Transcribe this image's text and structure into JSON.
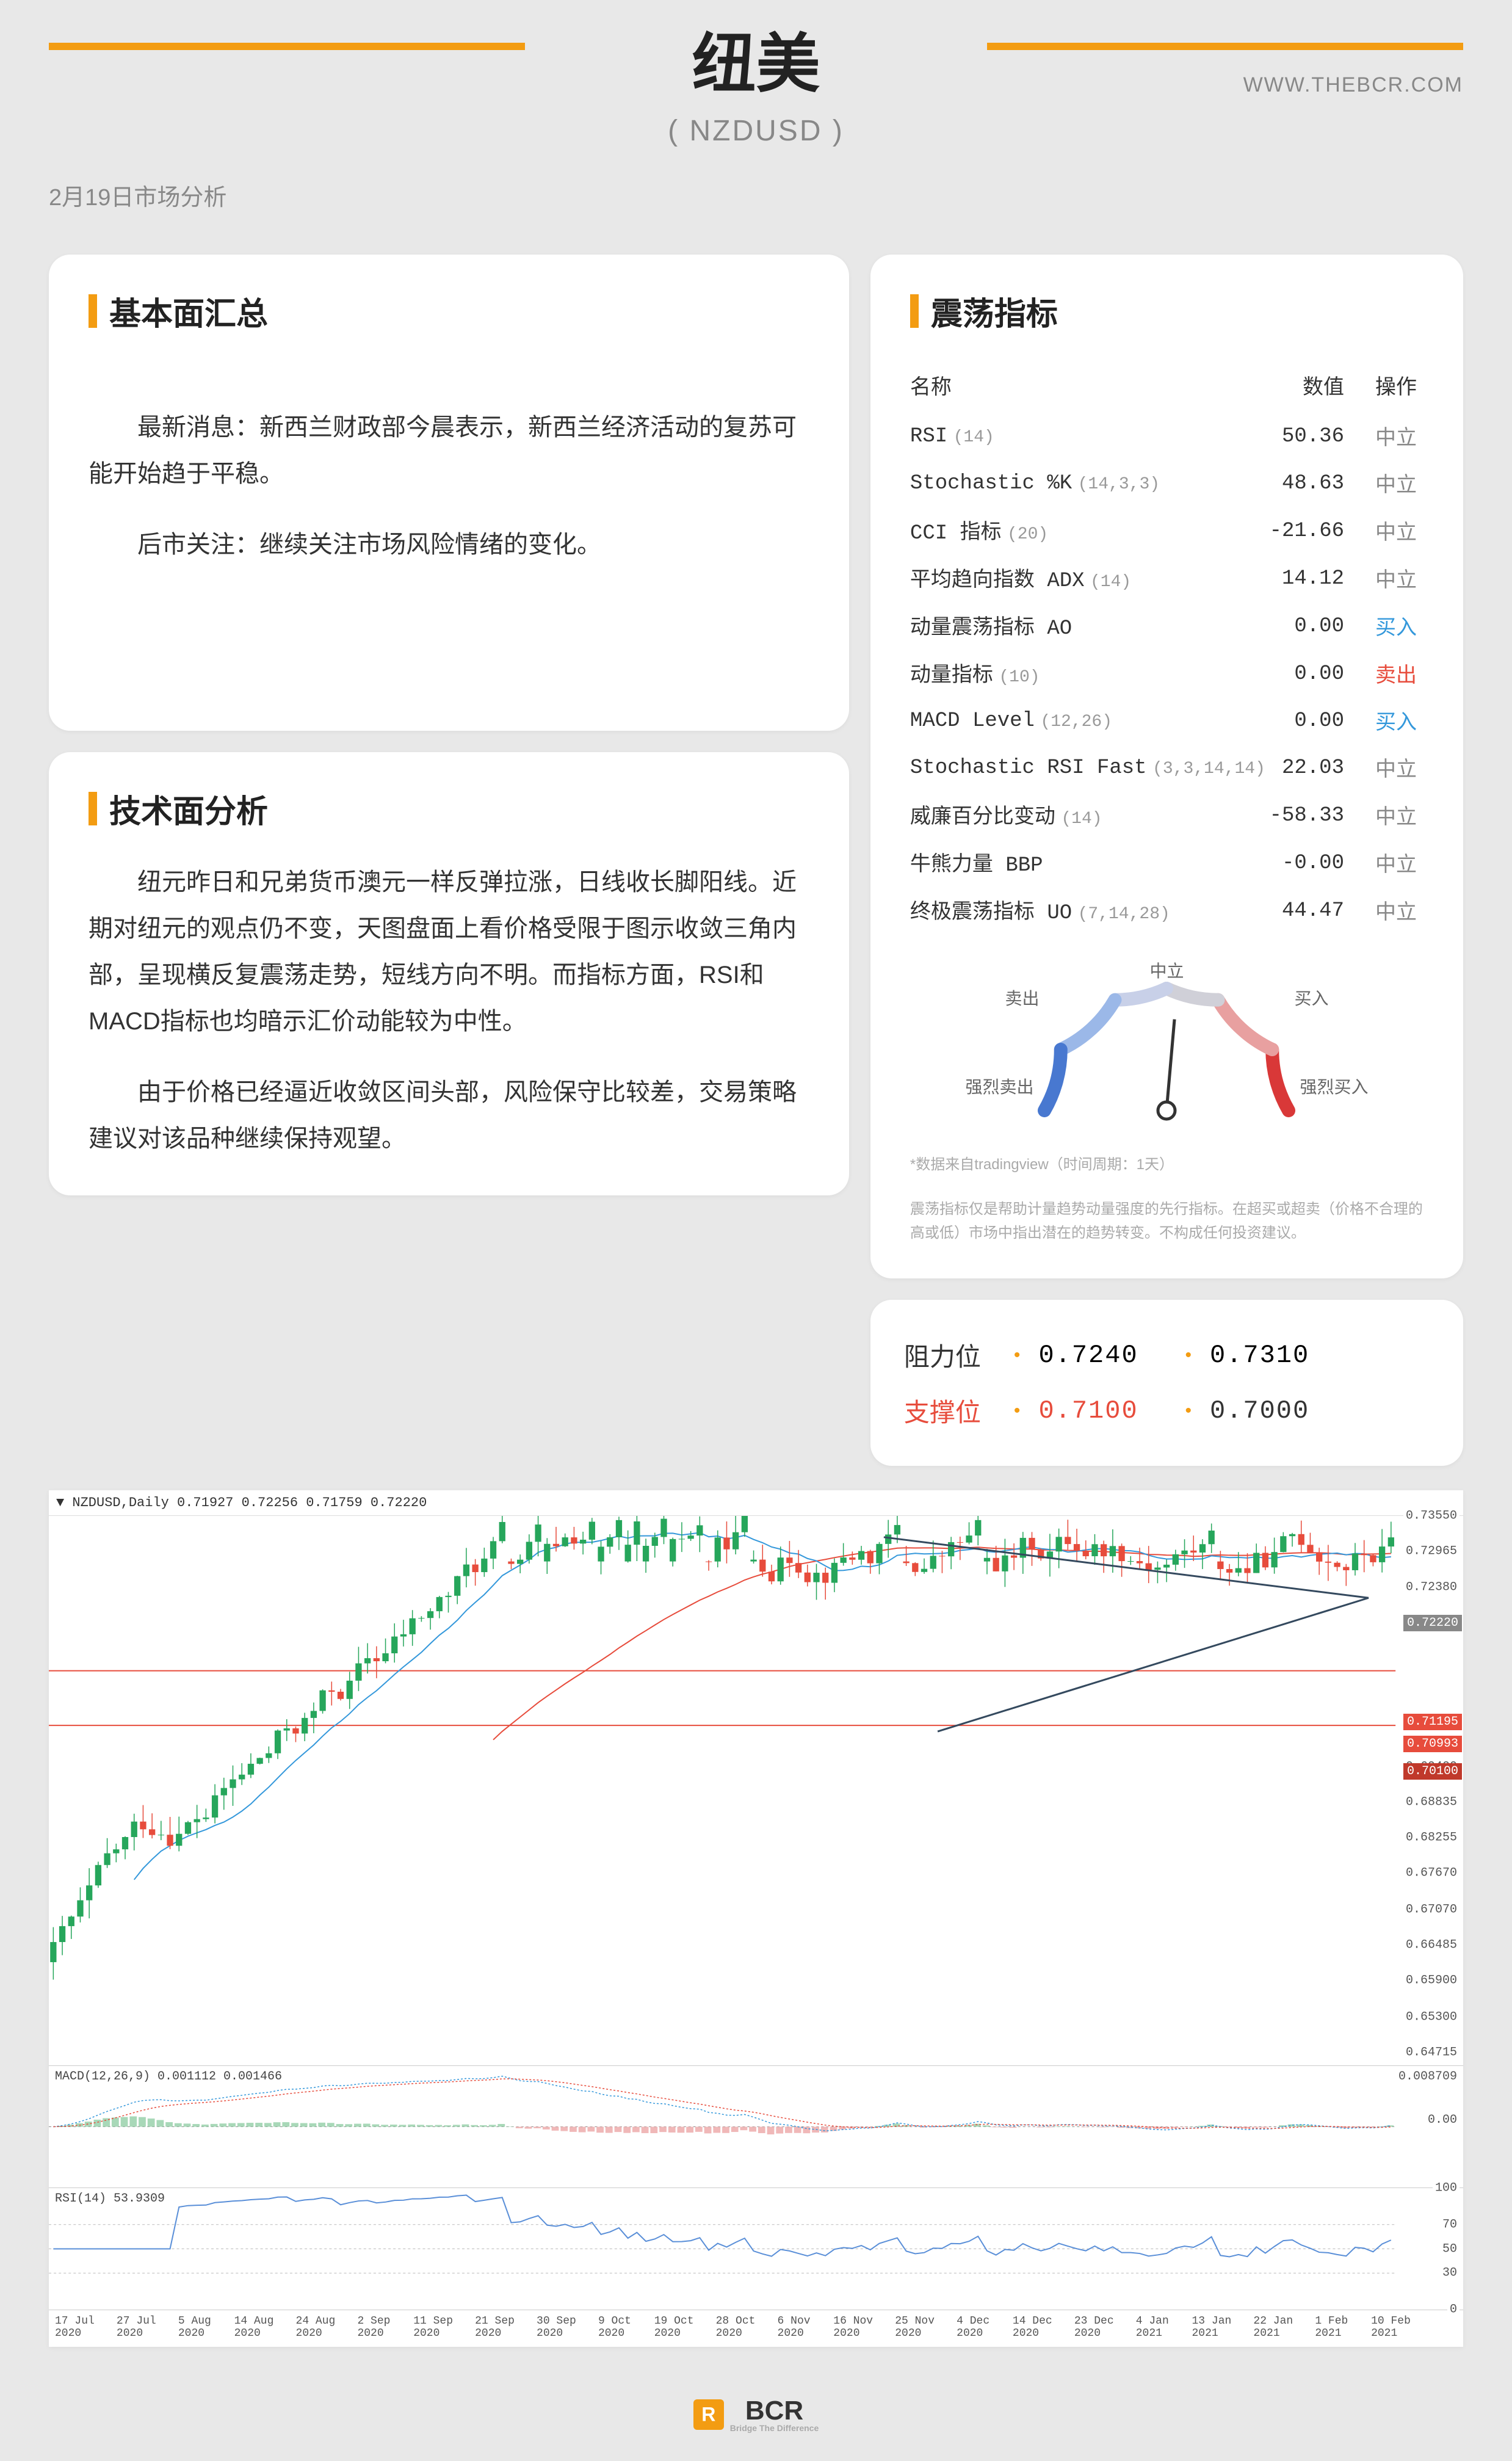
{
  "header": {
    "date": "2月19日市场分析",
    "url": "WWW.THEBCR.COM",
    "title": "纽美",
    "subtitle": "( NZDUSD )"
  },
  "fundamental": {
    "title": "基本面汇总",
    "p1": "最新消息：新西兰财政部今晨表示，新西兰经济活动的复苏可能开始趋于平稳。",
    "p2": "后市关注：继续关注市场风险情绪的变化。"
  },
  "technical": {
    "title": "技术面分析",
    "p1": "纽元昨日和兄弟货币澳元一样反弹拉涨，日线收长脚阳线。近期对纽元的观点仍不变，天图盘面上看价格受限于图示收敛三角内部，呈现横反复震荡走势，短线方向不明。而指标方面，RSI和MACD指标也均暗示汇价动能较为中性。",
    "p2": "由于价格已经逼近收敛区间头部，风险保守比较差，交易策略建议对该品种继续保持观望。"
  },
  "oscillators": {
    "title": "震荡指标",
    "columns": {
      "name": "名称",
      "value": "数值",
      "action": "操作"
    },
    "rows": [
      {
        "name": "RSI",
        "param": "(14)",
        "value": "50.36",
        "action": "中立",
        "action_type": "neutral"
      },
      {
        "name": "Stochastic %K",
        "param": "(14,3,3)",
        "value": "48.63",
        "action": "中立",
        "action_type": "neutral"
      },
      {
        "name": "CCI 指标",
        "param": "(20)",
        "value": "-21.66",
        "action": "中立",
        "action_type": "neutral"
      },
      {
        "name": "平均趋向指数 ADX",
        "param": "(14)",
        "value": "14.12",
        "action": "中立",
        "action_type": "neutral"
      },
      {
        "name": "动量震荡指标 AO",
        "param": "",
        "value": "0.00",
        "action": "买入",
        "action_type": "buy"
      },
      {
        "name": "动量指标",
        "param": "(10)",
        "value": "0.00",
        "action": "卖出",
        "action_type": "sell"
      },
      {
        "name": "MACD Level",
        "param": "(12,26)",
        "value": "0.00",
        "action": "买入",
        "action_type": "buy"
      },
      {
        "name": "Stochastic RSI Fast",
        "param": "(3,3,14,14)",
        "value": "22.03",
        "action": "中立",
        "action_type": "neutral"
      },
      {
        "name": "威廉百分比变动",
        "param": "(14)",
        "value": "-58.33",
        "action": "中立",
        "action_type": "neutral"
      },
      {
        "name": "牛熊力量 BBP",
        "param": "",
        "value": "-0.00",
        "action": "中立",
        "action_type": "neutral"
      },
      {
        "name": "终极震荡指标 UO",
        "param": "(7,14,28)",
        "value": "44.47",
        "action": "中立",
        "action_type": "neutral"
      }
    ],
    "gauge": {
      "labels": {
        "top": "中立",
        "sell": "卖出",
        "buy": "买入",
        "strong_sell": "强烈卖出",
        "strong_buy": "强烈买入"
      },
      "needle_angle": 5,
      "colors": {
        "strong_sell": "#d93838",
        "sell": "#e8a0a0",
        "neutral_l": "#d0d0d8",
        "neutral_r": "#c8d0e8",
        "buy": "#9bb8e8",
        "strong_buy": "#4878d0"
      }
    },
    "disclaimer1": "*数据来自tradingview（时间周期：1天）",
    "disclaimer2": "震荡指标仅是帮助计量趋势动量强度的先行指标。在超买或超卖（价格不合理的高或低）市场中指出潜在的趋势转变。不构成任何投资建议。"
  },
  "levels": {
    "resistance": {
      "label": "阻力位",
      "v1": "0.7240",
      "v2": "0.7310"
    },
    "support": {
      "label": "支撑位",
      "v1": "0.7100",
      "v2": "0.7000"
    }
  },
  "chart": {
    "header": "▼ NZDUSD,Daily  0.71927 0.72256 0.71759 0.72220",
    "y_labels": [
      "0.73550",
      "0.72965",
      "0.72380",
      "0.71780",
      "0.69420",
      "0.68835",
      "0.68255",
      "0.67670",
      "0.67070",
      "0.66485",
      "0.65900",
      "0.65300",
      "0.64715"
    ],
    "price_tags": [
      {
        "text": "0.72220",
        "top_pct": 18,
        "bg": "#888888"
      },
      {
        "text": "0.71195",
        "top_pct": 36,
        "bg": "#e74c3c"
      },
      {
        "text": "0.70993",
        "top_pct": 40,
        "bg": "#e74c3c"
      },
      {
        "text": "0.70100",
        "top_pct": 45,
        "bg": "#c0392b"
      }
    ],
    "y_top_val": 0.7355,
    "y_bot_val": 0.645,
    "candle_start": 0.662,
    "ma_fast_color": "#3498db",
    "ma_slow_color": "#e74c3c",
    "hline1": 0.71,
    "hline2": 0.701,
    "triangle": {
      "apex_x": 0.98,
      "apex_y": 0.722,
      "left_top_x": 0.62,
      "left_top_y": 0.732,
      "left_bot_x": 0.66,
      "left_bot_y": 0.7
    },
    "macd": {
      "label": "MACD(12,26,9) 0.001112 0.001466"
    },
    "rsi": {
      "label": "RSI(14) 53.9309",
      "levels": [
        "100",
        "70",
        "50",
        "30",
        "0"
      ]
    },
    "x_labels": [
      "17 Jul 2020",
      "27 Jul 2020",
      "5 Aug 2020",
      "14 Aug 2020",
      "24 Aug 2020",
      "2 Sep 2020",
      "11 Sep 2020",
      "21 Sep 2020",
      "30 Sep 2020",
      "9 Oct 2020",
      "19 Oct 2020",
      "28 Oct 2020",
      "6 Nov 2020",
      "16 Nov 2020",
      "25 Nov 2020",
      "4 Dec 2020",
      "14 Dec 2020",
      "23 Dec 2020",
      "4 Jan 2021",
      "13 Jan 2021",
      "22 Jan 2021",
      "1 Feb 2021",
      "10 Feb 2021"
    ]
  },
  "footer": {
    "brand": "BCR",
    "tagline": "Bridge The Difference"
  }
}
